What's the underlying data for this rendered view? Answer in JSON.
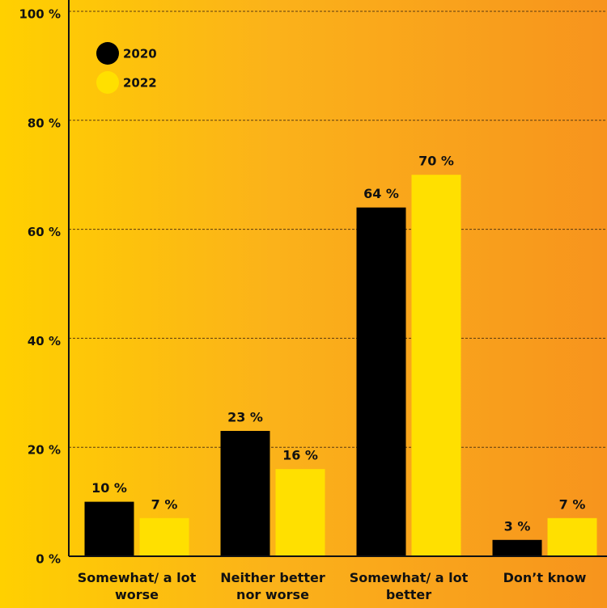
{
  "chart_data": {
    "type": "bar",
    "categories": [
      "Somewhat/ a lot worse",
      "Neither better nor worse",
      "Somewhat/ a lot better",
      "Don’t know"
    ],
    "series": [
      {
        "name": "2020",
        "color": "#000000",
        "values": [
          10,
          23,
          64,
          3
        ],
        "value_labels": [
          "10 %",
          "23 %",
          "64 %",
          "3 %"
        ]
      },
      {
        "name": "2022",
        "color": "#ffe000",
        "values": [
          7,
          16,
          70,
          7
        ],
        "value_labels": [
          "7 %",
          "16 %",
          "70 %",
          "7 %"
        ]
      }
    ],
    "ylim": [
      0,
      100
    ],
    "yticks": [
      {
        "value": 0,
        "label": "0 %"
      },
      {
        "value": 20,
        "label": "20 %"
      },
      {
        "value": 40,
        "label": "40 %"
      },
      {
        "value": 60,
        "label": "60 %"
      },
      {
        "value": 80,
        "label": "80 %"
      },
      {
        "value": 100,
        "label": "100 %"
      }
    ],
    "grid": true,
    "legend": "top-left"
  }
}
